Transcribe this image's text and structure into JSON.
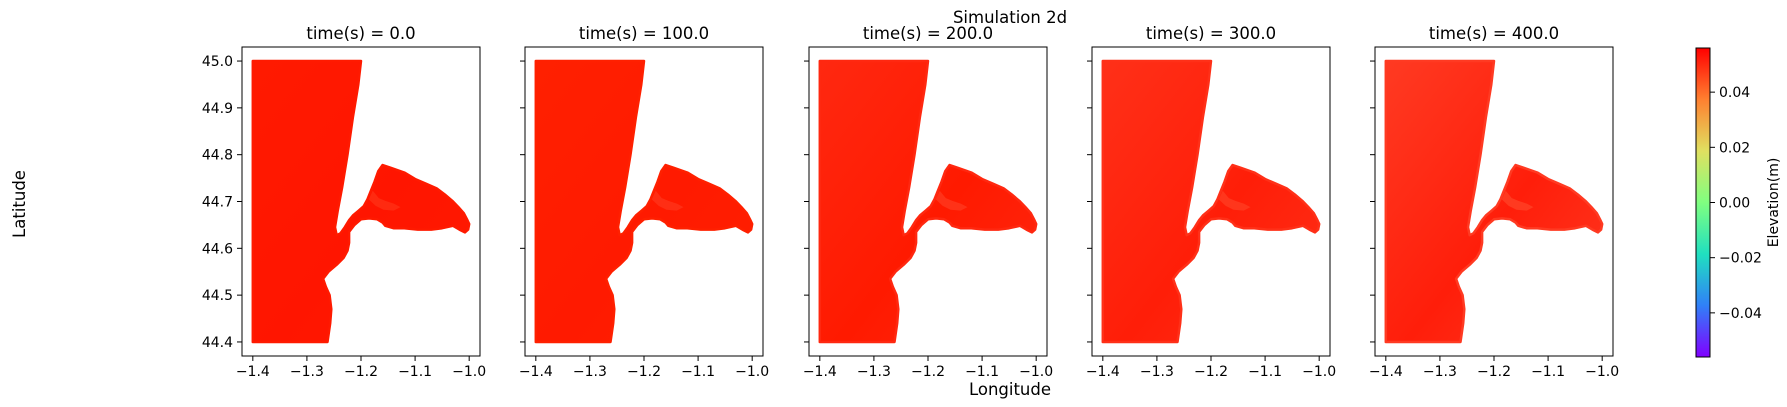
{
  "figure": {
    "suptitle": "Simulation 2d",
    "xlabel": "Longitude",
    "ylabel": "Latitude"
  },
  "chart_data": {
    "type": "scatter",
    "grid": false,
    "xlim": [
      -1.42,
      -0.98
    ],
    "ylim": [
      44.37,
      45.03
    ],
    "xticks": [
      -1.4,
      -1.3,
      -1.2,
      -1.1,
      -1.0
    ],
    "xtick_labels": [
      "−1.4",
      "−1.3",
      "−1.2",
      "−1.1",
      "−1.0"
    ],
    "yticks": [
      44.4,
      44.5,
      44.6,
      44.7,
      44.8,
      44.9,
      45.0
    ],
    "ytick_labels": [
      "44.4",
      "44.5",
      "44.6",
      "44.7",
      "44.8",
      "44.9",
      "45.0"
    ],
    "panels": [
      {
        "title": "time(s) = 0.0",
        "time": 0.0,
        "field_color": "#ff1a00",
        "inner_color": "#ff1500",
        "bay_color": "#ff2a10",
        "show_yticklabels": true
      },
      {
        "title": "time(s) = 100.0",
        "time": 100.0,
        "field_color": "#ff2000",
        "inner_color": "#ff1a00",
        "bay_color": "#ff2e14",
        "show_yticklabels": false
      },
      {
        "title": "time(s) = 200.0",
        "time": 200.0,
        "field_color": "#ff2810",
        "inner_color": "#ff1a00",
        "bay_color": "#ff3218",
        "show_yticklabels": false
      },
      {
        "title": "time(s) = 300.0",
        "time": 300.0,
        "field_color": "#ff3018",
        "inner_color": "#ff1e08",
        "bay_color": "#ff361c",
        "show_yticklabels": false
      },
      {
        "title": "time(s) = 400.0",
        "time": 400.0,
        "field_color": "#ff3a22",
        "inner_color": "#ff1e0a",
        "bay_color": "#ff3a20",
        "show_yticklabels": false
      }
    ],
    "colorbar": {
      "label": "Elevation(m)",
      "range": [
        -0.056,
        0.056
      ],
      "ticks": [
        -0.04,
        -0.02,
        0.0,
        0.02,
        0.04
      ],
      "tick_labels": [
        "−0.04",
        "−0.02",
        "0.00",
        "0.02",
        "0.04"
      ],
      "colormap": "rainbow",
      "colormap_stops": [
        "#8000ff",
        "#3080f8",
        "#20e0c0",
        "#80ff80",
        "#e0e060",
        "#ff8030",
        "#ff0000"
      ]
    },
    "domain_outline": [
      [
        -1.4,
        45.0
      ],
      [
        -1.2,
        45.0
      ],
      [
        -1.205,
        44.95
      ],
      [
        -1.215,
        44.88
      ],
      [
        -1.225,
        44.8
      ],
      [
        -1.235,
        44.73
      ],
      [
        -1.243,
        44.68
      ],
      [
        -1.248,
        44.645
      ],
      [
        -1.245,
        44.628
      ],
      [
        -1.238,
        44.632
      ],
      [
        -1.23,
        44.645
      ],
      [
        -1.222,
        44.66
      ],
      [
        -1.215,
        44.67
      ],
      [
        -1.205,
        44.68
      ],
      [
        -1.195,
        44.69
      ],
      [
        -1.188,
        44.705
      ],
      [
        -1.182,
        44.722
      ],
      [
        -1.175,
        44.742
      ],
      [
        -1.168,
        44.765
      ],
      [
        -1.16,
        44.778
      ],
      [
        -1.145,
        44.772
      ],
      [
        -1.12,
        44.762
      ],
      [
        -1.1,
        44.748
      ],
      [
        -1.08,
        44.738
      ],
      [
        -1.06,
        44.728
      ],
      [
        -1.045,
        44.715
      ],
      [
        -1.03,
        44.7
      ],
      [
        -1.02,
        44.688
      ],
      [
        -1.01,
        44.675
      ],
      [
        -1.004,
        44.662
      ],
      [
        -1.0,
        44.652
      ],
      [
        -1.002,
        44.64
      ],
      [
        -1.008,
        44.634
      ],
      [
        -1.018,
        44.64
      ],
      [
        -1.03,
        44.648
      ],
      [
        -1.05,
        44.643
      ],
      [
        -1.07,
        44.64
      ],
      [
        -1.095,
        44.64
      ],
      [
        -1.12,
        44.643
      ],
      [
        -1.14,
        44.643
      ],
      [
        -1.155,
        44.648
      ],
      [
        -1.16,
        44.655
      ],
      [
        -1.17,
        44.662
      ],
      [
        -1.185,
        44.664
      ],
      [
        -1.2,
        44.662
      ],
      [
        -1.212,
        44.65
      ],
      [
        -1.222,
        44.635
      ],
      [
        -1.222,
        44.612
      ],
      [
        -1.225,
        44.595
      ],
      [
        -1.232,
        44.58
      ],
      [
        -1.245,
        44.565
      ],
      [
        -1.26,
        44.55
      ],
      [
        -1.27,
        44.535
      ],
      [
        -1.265,
        44.518
      ],
      [
        -1.258,
        44.5
      ],
      [
        -1.255,
        44.47
      ],
      [
        -1.257,
        44.44
      ],
      [
        -1.262,
        44.4
      ],
      [
        -1.4,
        44.4
      ]
    ],
    "estuary_strip": [
      [
        -1.178,
        44.72
      ],
      [
        -1.168,
        44.706
      ],
      [
        -1.156,
        44.7
      ],
      [
        -1.14,
        44.694
      ],
      [
        -1.13,
        44.688
      ],
      [
        -1.14,
        44.682
      ],
      [
        -1.158,
        44.684
      ],
      [
        -1.172,
        44.692
      ],
      [
        -1.184,
        44.705
      ]
    ]
  }
}
